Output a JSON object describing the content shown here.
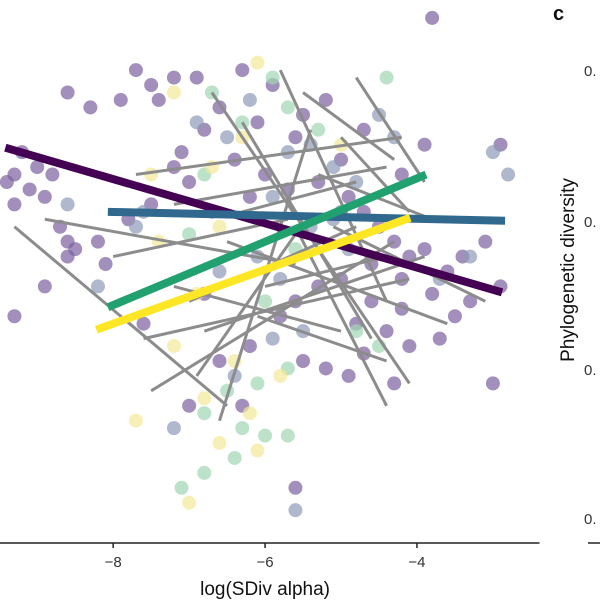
{
  "chart_data": {
    "type": "scatter",
    "title": "",
    "xlabel": "log(SDiv alpha)",
    "ylabel": "",
    "xlim": [
      -9.49,
      -2.38
    ],
    "ylim": [
      -0.17,
      3.47
    ],
    "x_ticks": [
      -8,
      -6,
      -4
    ],
    "x_tick_labels": [
      "−8",
      "−6",
      "−4"
    ],
    "grid": false,
    "legend": "none",
    "color_scale": "viridis",
    "point_groups": [
      {
        "name": "group-1",
        "color": "#7b5f9e",
        "points": [
          [
            -7.7,
            3.0
          ],
          [
            -7.2,
            2.95
          ],
          [
            -7.5,
            2.9
          ],
          [
            -7.9,
            2.8
          ],
          [
            -8.3,
            2.75
          ],
          [
            -8.6,
            2.85
          ],
          [
            -7.4,
            2.8
          ],
          [
            -6.9,
            2.95
          ],
          [
            -6.3,
            3.0
          ],
          [
            -6.1,
            2.65
          ],
          [
            -5.9,
            2.9
          ],
          [
            -5.6,
            2.55
          ],
          [
            -5.5,
            2.7
          ],
          [
            -7.1,
            2.45
          ],
          [
            -6.8,
            2.6
          ],
          [
            -6.6,
            2.75
          ],
          [
            -9.2,
            2.45
          ],
          [
            -9.3,
            2.3
          ],
          [
            -9.4,
            2.25
          ],
          [
            -9.1,
            2.2
          ],
          [
            -9.0,
            2.35
          ],
          [
            -8.8,
            2.3
          ],
          [
            -8.9,
            2.15
          ],
          [
            -9.3,
            2.1
          ],
          [
            -8.7,
            1.95
          ],
          [
            -8.6,
            1.85
          ],
          [
            -8.5,
            1.8
          ],
          [
            -8.6,
            1.75
          ],
          [
            -8.2,
            1.85
          ],
          [
            -8.1,
            1.7
          ],
          [
            -8.9,
            1.55
          ],
          [
            -9.3,
            1.35
          ],
          [
            -7.2,
            2.35
          ],
          [
            -7.0,
            2.25
          ],
          [
            -7.5,
            2.1
          ],
          [
            -7.8,
            2.0
          ],
          [
            -6.4,
            2.4
          ],
          [
            -6.0,
            2.3
          ],
          [
            -6.2,
            2.15
          ],
          [
            -5.7,
            2.2
          ],
          [
            -5.3,
            2.25
          ],
          [
            -5.0,
            2.4
          ],
          [
            -4.9,
            2.15
          ],
          [
            -4.7,
            2.05
          ],
          [
            -4.5,
            1.95
          ],
          [
            -4.3,
            1.85
          ],
          [
            -4.1,
            1.75
          ],
          [
            -4.6,
            1.7
          ],
          [
            -4.2,
            1.6
          ],
          [
            -3.9,
            1.8
          ],
          [
            -3.6,
            1.65
          ],
          [
            -3.4,
            1.75
          ],
          [
            -3.1,
            1.85
          ],
          [
            -5.0,
            1.6
          ],
          [
            -5.3,
            1.55
          ],
          [
            -5.6,
            1.45
          ],
          [
            -5.8,
            1.35
          ],
          [
            -4.8,
            1.3
          ],
          [
            -4.4,
            1.25
          ],
          [
            -4.1,
            1.15
          ],
          [
            -3.7,
            1.2
          ],
          [
            -3.5,
            1.35
          ],
          [
            -4.6,
            1.45
          ],
          [
            -4.2,
            1.4
          ],
          [
            -3.8,
            1.5
          ],
          [
            -3.3,
            1.45
          ],
          [
            -5.5,
            1.05
          ],
          [
            -5.2,
            1.0
          ],
          [
            -4.9,
            0.95
          ],
          [
            -4.3,
            0.9
          ],
          [
            -4.7,
            1.1
          ],
          [
            -3.0,
            0.9
          ],
          [
            -6.6,
            1.05
          ],
          [
            -6.2,
            1.15
          ],
          [
            -6.8,
            1.5
          ],
          [
            -7.6,
            1.3
          ],
          [
            -7.0,
            0.75
          ],
          [
            -6.3,
            0.75
          ],
          [
            -5.6,
            0.2
          ],
          [
            -5.2,
            2.8
          ],
          [
            -4.7,
            2.6
          ],
          [
            -4.2,
            2.3
          ],
          [
            -3.9,
            2.5
          ],
          [
            -3.8,
            3.35
          ],
          [
            -2.9,
            2.5
          ],
          [
            -2.9,
            1.55
          ]
        ]
      },
      {
        "name": "group-2",
        "color": "#8e9ab8",
        "points": [
          [
            -6.9,
            2.65
          ],
          [
            -6.5,
            2.55
          ],
          [
            -6.2,
            2.8
          ],
          [
            -5.7,
            2.45
          ],
          [
            -5.4,
            2.5
          ],
          [
            -5.1,
            2.35
          ],
          [
            -4.5,
            2.7
          ],
          [
            -4.3,
            2.55
          ],
          [
            -5.9,
            2.15
          ],
          [
            -6.7,
            2.05
          ],
          [
            -7.6,
            2.05
          ],
          [
            -7.7,
            1.95
          ],
          [
            -8.2,
            1.55
          ],
          [
            -5.4,
            1.95
          ],
          [
            -5.1,
            2.0
          ],
          [
            -4.8,
            2.25
          ],
          [
            -6.1,
            1.75
          ],
          [
            -6.6,
            1.65
          ],
          [
            -5.8,
            1.6
          ],
          [
            -4.9,
            1.8
          ],
          [
            -3.7,
            1.6
          ],
          [
            -3.3,
            1.75
          ],
          [
            -5.9,
            1.2
          ],
          [
            -5.5,
            1.25
          ],
          [
            -6.4,
            0.95
          ],
          [
            -7.2,
            0.6
          ],
          [
            -5.6,
            0.05
          ],
          [
            -3.0,
            2.45
          ],
          [
            -2.8,
            2.3
          ],
          [
            -8.6,
            2.1
          ],
          [
            -5.0,
            2.05
          ]
        ]
      },
      {
        "name": "group-3",
        "color": "#9fd5b3",
        "points": [
          [
            -6.7,
            2.85
          ],
          [
            -5.9,
            2.95
          ],
          [
            -5.7,
            2.75
          ],
          [
            -5.3,
            2.6
          ],
          [
            -4.4,
            2.95
          ],
          [
            -6.3,
            2.65
          ],
          [
            -6.8,
            2.3
          ],
          [
            -7.0,
            1.9
          ],
          [
            -5.6,
            1.8
          ],
          [
            -6.0,
            1.45
          ],
          [
            -4.8,
            1.25
          ],
          [
            -4.5,
            1.15
          ],
          [
            -5.7,
            1.0
          ],
          [
            -6.1,
            0.9
          ],
          [
            -6.5,
            0.85
          ],
          [
            -6.8,
            0.7
          ],
          [
            -6.3,
            0.6
          ],
          [
            -6.0,
            0.55
          ],
          [
            -5.7,
            0.55
          ],
          [
            -6.8,
            0.3
          ],
          [
            -6.4,
            0.4
          ],
          [
            -7.1,
            0.2
          ]
        ]
      },
      {
        "name": "group-4",
        "color": "#f3ea97",
        "points": [
          [
            -6.1,
            3.05
          ],
          [
            -7.2,
            2.85
          ],
          [
            -6.3,
            2.55
          ],
          [
            -6.7,
            2.35
          ],
          [
            -7.5,
            2.3
          ],
          [
            -7.4,
            1.85
          ],
          [
            -6.6,
            1.95
          ],
          [
            -6.9,
            1.5
          ],
          [
            -7.2,
            1.15
          ],
          [
            -6.4,
            1.05
          ],
          [
            -5.8,
            0.95
          ],
          [
            -6.8,
            0.8
          ],
          [
            -6.2,
            0.7
          ],
          [
            -6.6,
            0.5
          ],
          [
            -6.1,
            0.45
          ],
          [
            -7.0,
            0.1
          ],
          [
            -7.7,
            0.65
          ],
          [
            -5.0,
            2.5
          ]
        ]
      }
    ],
    "gray_segments": [
      [
        [
          -7.7,
          2.3
        ],
        [
          -4.2,
          2.55
        ]
      ],
      [
        [
          -6.3,
          2.05
        ],
        [
          -4.8,
          2.25
        ]
      ],
      [
        [
          -7.2,
          2.1
        ],
        [
          -4.4,
          2.35
        ]
      ],
      [
        [
          -9.3,
          1.95
        ],
        [
          -6.5,
          0.75
        ]
      ],
      [
        [
          -5.1,
          1.95
        ],
        [
          -3.1,
          1.45
        ]
      ],
      [
        [
          -5.3,
          2.3
        ],
        [
          -3.8,
          2.0
        ]
      ],
      [
        [
          -6.0,
          1.55
        ],
        [
          -4.4,
          1.75
        ]
      ],
      [
        [
          -7.5,
          0.85
        ],
        [
          -4.3,
          1.85
        ]
      ],
      [
        [
          -7.6,
          1.2
        ],
        [
          -4.1,
          1.6
        ]
      ],
      [
        [
          -6.3,
          2.65
        ],
        [
          -4.6,
          1.2
        ]
      ],
      [
        [
          -6.7,
          2.85
        ],
        [
          -4.1,
          0.9
        ]
      ],
      [
        [
          -5.6,
          1.95
        ],
        [
          -4.4,
          0.75
        ]
      ],
      [
        [
          -6.8,
          1.25
        ],
        [
          -3.9,
          1.75
        ]
      ],
      [
        [
          -7.0,
          1.45
        ],
        [
          -4.8,
          1.95
        ]
      ],
      [
        [
          -8.9,
          2.0
        ],
        [
          -5.6,
          1.7
        ]
      ],
      [
        [
          -6.6,
          0.65
        ],
        [
          -5.4,
          2.6
        ]
      ],
      [
        [
          -7.2,
          1.55
        ],
        [
          -5.0,
          1.25
        ]
      ],
      [
        [
          -5.8,
          3.0
        ],
        [
          -4.4,
          1.45
        ]
      ],
      [
        [
          -5.0,
          2.55
        ],
        [
          -4.1,
          2.05
        ]
      ],
      [
        [
          -4.8,
          2.95
        ],
        [
          -3.9,
          2.25
        ]
      ],
      [
        [
          -5.5,
          2.85
        ],
        [
          -4.3,
          2.4
        ]
      ],
      [
        [
          -6.1,
          1.35
        ],
        [
          -4.4,
          1.05
        ]
      ],
      [
        [
          -8.0,
          1.75
        ],
        [
          -5.7,
          2.0
        ]
      ],
      [
        [
          -6.9,
          0.95
        ],
        [
          -5.6,
          1.9
        ]
      ],
      [
        [
          -6.5,
          1.85
        ],
        [
          -3.6,
          1.3
        ]
      ]
    ],
    "trend_lines": [
      {
        "name": "trend-purple",
        "color": "#440154",
        "x": [
          -9.42,
          -2.88
        ],
        "y": [
          2.48,
          1.51
        ]
      },
      {
        "name": "trend-blue",
        "color": "#31688e",
        "x": [
          -8.07,
          -2.84
        ],
        "y": [
          2.05,
          1.99
        ]
      },
      {
        "name": "trend-green",
        "color": "#21a16f",
        "x": [
          -8.07,
          -3.88
        ],
        "y": [
          1.41,
          2.3
        ]
      },
      {
        "name": "trend-yellow",
        "color": "#fde725",
        "x": [
          -8.22,
          -4.09
        ],
        "y": [
          1.26,
          2.01
        ]
      }
    ],
    "axis_color": "#222222",
    "gray_line_color": "#8c8c8c"
  },
  "next_panel": {
    "label": "c",
    "ylabel": "Phylogenetic diversity",
    "y_tick_labels": [
      "0.",
      "0.",
      "0.",
      "0."
    ]
  }
}
